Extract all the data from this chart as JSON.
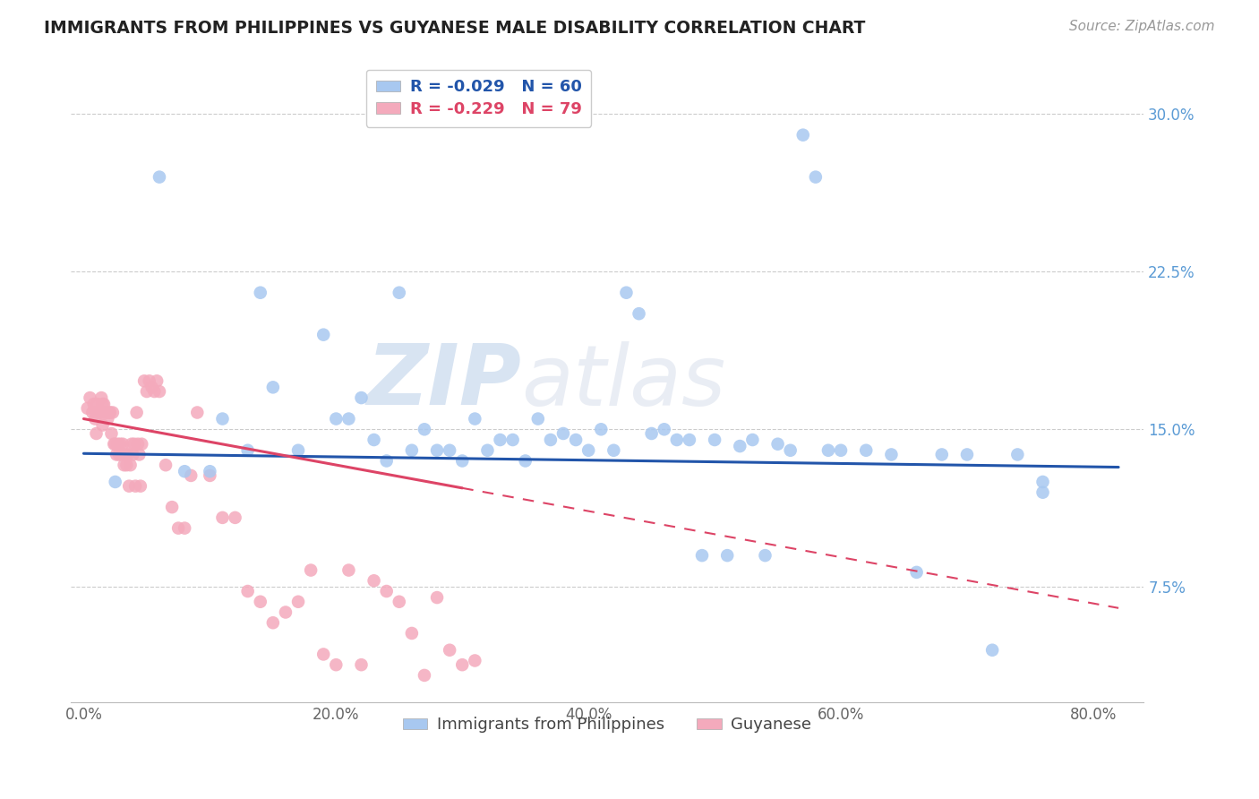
{
  "title": "IMMIGRANTS FROM PHILIPPINES VS GUYANESE MALE DISABILITY CORRELATION CHART",
  "source": "Source: ZipAtlas.com",
  "xlabel_ticks": [
    "0.0%",
    "20.0%",
    "40.0%",
    "60.0%",
    "80.0%"
  ],
  "xlabel_vals": [
    0.0,
    0.2,
    0.4,
    0.6,
    0.8
  ],
  "ylabel_ticks": [
    "7.5%",
    "15.0%",
    "22.5%",
    "30.0%"
  ],
  "ylabel_vals": [
    0.075,
    0.15,
    0.225,
    0.3
  ],
  "xlim": [
    -0.01,
    0.84
  ],
  "ylim": [
    0.02,
    0.325
  ],
  "legend1_label": "R = -0.029   N = 60",
  "legend2_label": "R = -0.229   N = 79",
  "series1_label": "Immigrants from Philippines",
  "series2_label": "Guyanese",
  "series1_color": "#A8C8F0",
  "series2_color": "#F4AABC",
  "series1_line_color": "#2255AA",
  "series2_line_color": "#DD4466",
  "watermark_zip": "ZIP",
  "watermark_atlas": "atlas",
  "scatter1_x": [
    0.025,
    0.06,
    0.08,
    0.1,
    0.11,
    0.13,
    0.14,
    0.15,
    0.17,
    0.19,
    0.2,
    0.21,
    0.22,
    0.23,
    0.24,
    0.25,
    0.26,
    0.27,
    0.28,
    0.29,
    0.3,
    0.31,
    0.32,
    0.33,
    0.34,
    0.35,
    0.36,
    0.37,
    0.38,
    0.39,
    0.4,
    0.41,
    0.42,
    0.43,
    0.44,
    0.45,
    0.46,
    0.47,
    0.48,
    0.49,
    0.5,
    0.51,
    0.52,
    0.53,
    0.54,
    0.55,
    0.56,
    0.57,
    0.58,
    0.59,
    0.6,
    0.62,
    0.64,
    0.66,
    0.68,
    0.7,
    0.72,
    0.74,
    0.76,
    0.76
  ],
  "scatter1_y": [
    0.125,
    0.27,
    0.13,
    0.13,
    0.155,
    0.14,
    0.215,
    0.17,
    0.14,
    0.195,
    0.155,
    0.155,
    0.165,
    0.145,
    0.135,
    0.215,
    0.14,
    0.15,
    0.14,
    0.14,
    0.135,
    0.155,
    0.14,
    0.145,
    0.145,
    0.135,
    0.155,
    0.145,
    0.148,
    0.145,
    0.14,
    0.15,
    0.14,
    0.215,
    0.205,
    0.148,
    0.15,
    0.145,
    0.145,
    0.09,
    0.145,
    0.09,
    0.142,
    0.145,
    0.09,
    0.143,
    0.14,
    0.29,
    0.27,
    0.14,
    0.14,
    0.14,
    0.138,
    0.082,
    0.138,
    0.138,
    0.045,
    0.138,
    0.125,
    0.12
  ],
  "scatter2_x": [
    0.003,
    0.005,
    0.007,
    0.008,
    0.009,
    0.01,
    0.01,
    0.011,
    0.012,
    0.013,
    0.014,
    0.015,
    0.015,
    0.016,
    0.017,
    0.018,
    0.019,
    0.02,
    0.021,
    0.022,
    0.023,
    0.024,
    0.025,
    0.026,
    0.027,
    0.028,
    0.029,
    0.03,
    0.031,
    0.032,
    0.033,
    0.034,
    0.035,
    0.036,
    0.037,
    0.038,
    0.039,
    0.04,
    0.041,
    0.042,
    0.043,
    0.044,
    0.045,
    0.046,
    0.048,
    0.05,
    0.052,
    0.054,
    0.056,
    0.058,
    0.06,
    0.065,
    0.07,
    0.075,
    0.08,
    0.085,
    0.09,
    0.1,
    0.11,
    0.12,
    0.13,
    0.14,
    0.15,
    0.16,
    0.17,
    0.18,
    0.19,
    0.2,
    0.21,
    0.22,
    0.23,
    0.24,
    0.25,
    0.26,
    0.27,
    0.28,
    0.29,
    0.3,
    0.31
  ],
  "scatter2_y": [
    0.16,
    0.165,
    0.158,
    0.162,
    0.155,
    0.158,
    0.148,
    0.162,
    0.158,
    0.158,
    0.165,
    0.162,
    0.152,
    0.162,
    0.158,
    0.158,
    0.155,
    0.158,
    0.158,
    0.148,
    0.158,
    0.143,
    0.143,
    0.138,
    0.143,
    0.138,
    0.143,
    0.138,
    0.143,
    0.133,
    0.138,
    0.133,
    0.138,
    0.123,
    0.133,
    0.143,
    0.138,
    0.143,
    0.123,
    0.158,
    0.143,
    0.138,
    0.123,
    0.143,
    0.173,
    0.168,
    0.173,
    0.17,
    0.168,
    0.173,
    0.168,
    0.133,
    0.113,
    0.103,
    0.103,
    0.128,
    0.158,
    0.128,
    0.108,
    0.108,
    0.073,
    0.068,
    0.058,
    0.063,
    0.068,
    0.083,
    0.043,
    0.038,
    0.083,
    0.038,
    0.078,
    0.073,
    0.068,
    0.053,
    0.033,
    0.07,
    0.045,
    0.038,
    0.04
  ],
  "line1_x0": 0.0,
  "line1_x1": 0.82,
  "line1_y0": 0.1385,
  "line1_y1": 0.132,
  "line2_x0": 0.0,
  "line2_x1": 0.82,
  "line2_y0": 0.155,
  "line2_y1": 0.065
}
